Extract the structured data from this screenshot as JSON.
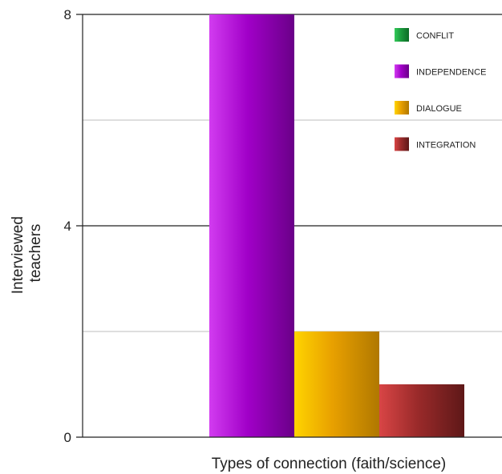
{
  "chart_data": {
    "type": "bar",
    "title": "",
    "xlabel": "Types of connection (faith/science)",
    "ylabel_lines": [
      "Interviewed",
      "teachers"
    ],
    "ylim": [
      0,
      8
    ],
    "yticks": [
      0,
      4,
      8
    ],
    "grid": true,
    "legend_position": "top-right",
    "series": [
      {
        "name": "CONFLIT",
        "value": 0,
        "color": "#1a9a3c",
        "color_light": "#34c95a",
        "color_dark": "#0d6b27"
      },
      {
        "name": "INDEPENDENCE",
        "value": 8,
        "color": "#a100c8",
        "color_light": "#d23cf0",
        "color_dark": "#6a0088"
      },
      {
        "name": "DIALOGUE",
        "value": 2,
        "color": "#e8a000",
        "color_light": "#ffd400",
        "color_dark": "#b07800"
      },
      {
        "name": "INTEGRATION",
        "value": 1,
        "color": "#9a2a2a",
        "color_light": "#d84545",
        "color_dark": "#5e1818"
      }
    ]
  }
}
